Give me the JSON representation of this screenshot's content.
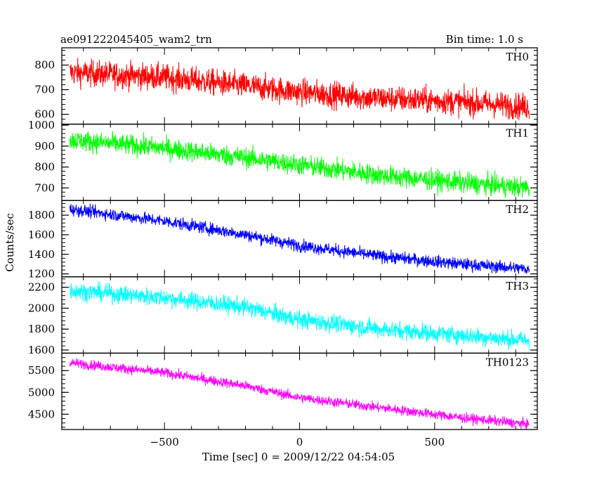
{
  "header": {
    "title": "ae091222045405_wam2_trn",
    "bin_time": "Bin time: 1.0 s"
  },
  "chart_data": {
    "type": "line",
    "xlabel": "Time [sec] 0 = 2009/12/22 04:54:05",
    "ylabel": "Counts/sec",
    "xlim": [
      -880,
      880
    ],
    "x_ticks": [
      -500,
      0,
      500
    ],
    "x_range_data": [
      -850,
      850
    ],
    "grid": false,
    "panels": [
      {
        "name": "TH0",
        "color": "#ff0000",
        "ylim": [
          560,
          870
        ],
        "y_ticks": [
          600,
          700,
          800
        ],
        "trend": [
          [
            -850,
            770
          ],
          [
            -500,
            750
          ],
          [
            -200,
            715
          ],
          [
            0,
            690
          ],
          [
            300,
            665
          ],
          [
            600,
            650
          ],
          [
            850,
            630
          ]
        ],
        "noise_amplitude": 38
      },
      {
        "name": "TH1",
        "color": "#00ff00",
        "ylim": [
          640,
          1005
        ],
        "y_ticks": [
          700,
          800,
          900,
          1000
        ],
        "trend": [
          [
            -850,
            930
          ],
          [
            -500,
            890
          ],
          [
            -200,
            845
          ],
          [
            0,
            810
          ],
          [
            300,
            760
          ],
          [
            600,
            725
          ],
          [
            850,
            700
          ]
        ],
        "noise_amplitude": 35
      },
      {
        "name": "TH2",
        "color": "#0000ff",
        "ylim": [
          1170,
          1950
        ],
        "y_ticks": [
          1200,
          1400,
          1600,
          1800
        ],
        "trend": [
          [
            -850,
            1860
          ],
          [
            -500,
            1740
          ],
          [
            -200,
            1600
          ],
          [
            0,
            1490
          ],
          [
            300,
            1380
          ],
          [
            600,
            1300
          ],
          [
            850,
            1250
          ]
        ],
        "noise_amplitude": 45
      },
      {
        "name": "TH3",
        "color": "#00ffff",
        "ylim": [
          1570,
          2300
        ],
        "y_ticks": [
          1600,
          1800,
          2000,
          2200
        ],
        "trend": [
          [
            -850,
            2170
          ],
          [
            -500,
            2100
          ],
          [
            -200,
            2010
          ],
          [
            0,
            1890
          ],
          [
            300,
            1800
          ],
          [
            600,
            1740
          ],
          [
            850,
            1690
          ]
        ],
        "noise_amplitude": 60
      },
      {
        "name": "TH0123",
        "color": "#ff00ff",
        "ylim": [
          4150,
          5900
        ],
        "y_ticks": [
          4500,
          5000,
          5500
        ],
        "trend": [
          [
            -850,
            5680
          ],
          [
            -500,
            5450
          ],
          [
            -200,
            5150
          ],
          [
            0,
            4880
          ],
          [
            300,
            4650
          ],
          [
            600,
            4420
          ],
          [
            850,
            4270
          ]
        ],
        "noise_amplitude": 80
      }
    ]
  }
}
